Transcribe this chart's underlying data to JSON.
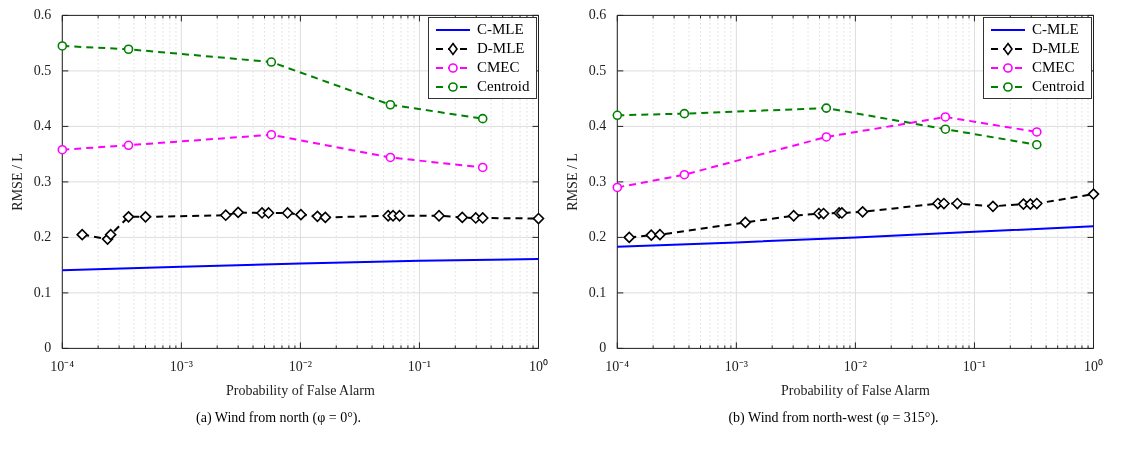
{
  "chart_data": [
    {
      "type": "line",
      "xlabel": "Probability of False Alarm",
      "ylabel": "RMSE / L",
      "log": "x",
      "grid": true,
      "legend": "top right",
      "xlim": [
        0.0001,
        1
      ],
      "ylim": [
        0,
        0.6
      ],
      "xticks": [
        {
          "value": 0.0001,
          "label": "10⁻⁴"
        },
        {
          "value": 0.0002,
          "label": null
        },
        {
          "value": 0.0003,
          "label": null
        },
        {
          "value": 0.0004,
          "label": null
        },
        {
          "value": 0.0005,
          "label": null
        },
        {
          "value": 0.0006,
          "label": null
        },
        {
          "value": 0.0007,
          "label": null
        },
        {
          "value": 0.0008,
          "label": null
        },
        {
          "value": 0.0009,
          "label": null
        },
        {
          "value": 0.001,
          "label": "10⁻³"
        },
        {
          "value": 0.002,
          "label": null
        },
        {
          "value": 0.003,
          "label": null
        },
        {
          "value": 0.004,
          "label": null
        },
        {
          "value": 0.005,
          "label": null
        },
        {
          "value": 0.006,
          "label": null
        },
        {
          "value": 0.007,
          "label": null
        },
        {
          "value": 0.008,
          "label": null
        },
        {
          "value": 0.009,
          "label": null
        },
        {
          "value": 0.01,
          "label": "10⁻²"
        },
        {
          "value": 0.02,
          "label": null
        },
        {
          "value": 0.03,
          "label": null
        },
        {
          "value": 0.04,
          "label": null
        },
        {
          "value": 0.05,
          "label": null
        },
        {
          "value": 0.06,
          "label": null
        },
        {
          "value": 0.07,
          "label": null
        },
        {
          "value": 0.08,
          "label": null
        },
        {
          "value": 0.09,
          "label": null
        },
        {
          "value": 0.1,
          "label": "10⁻¹"
        },
        {
          "value": 0.2,
          "label": null
        },
        {
          "value": 0.3,
          "label": null
        },
        {
          "value": 0.4,
          "label": null
        },
        {
          "value": 0.5,
          "label": null
        },
        {
          "value": 0.6,
          "label": null
        },
        {
          "value": 0.7,
          "label": null
        },
        {
          "value": 0.8,
          "label": null
        },
        {
          "value": 0.9,
          "label": null
        },
        {
          "value": 1,
          "label": "10⁰"
        }
      ],
      "yticks": [
        0,
        0.1,
        0.2,
        0.3,
        0.4,
        0.5,
        0.6
      ],
      "annotations": [
        "(a) Wind from north (φ = 0°)."
      ],
      "series": [
        {
          "name": "C-MLE",
          "color": "#0000ff",
          "marker": "none",
          "line_style": "solid",
          "x": [
            0.0001,
            0.001,
            0.01,
            0.1,
            1
          ],
          "values": [
            0.141,
            0.147,
            0.153,
            0.158,
            0.161
          ]
        },
        {
          "name": "D-MLE",
          "color": "#000000",
          "marker": "diamond",
          "line_style": "dashed",
          "x": [
            0.000147,
            0.00024,
            0.000255,
            0.00036,
            0.0005,
            0.00236,
            0.003,
            0.00476,
            0.0054,
            0.0078,
            0.0101,
            0.0139,
            0.0162,
            0.0546,
            0.06,
            0.068,
            0.146,
            0.229,
            0.297,
            0.34,
            1
          ],
          "values": [
            0.205,
            0.197,
            0.205,
            0.237,
            0.237,
            0.24,
            0.245,
            0.244,
            0.244,
            0.244,
            0.241,
            0.238,
            0.236,
            0.239,
            0.239,
            0.239,
            0.239,
            0.236,
            0.235,
            0.235,
            0.234
          ]
        },
        {
          "name": "CMEC",
          "color": "#ff00ff",
          "marker": "circle",
          "line_style": "dashed",
          "x": [
            0.0001,
            0.00036,
            0.0057,
            0.057,
            0.34
          ],
          "values": [
            0.358,
            0.366,
            0.385,
            0.344,
            0.326
          ]
        },
        {
          "name": "Centroid",
          "color": "#008000",
          "marker": "circle",
          "line_style": "dashed",
          "x": [
            0.0001,
            0.00036,
            0.0057,
            0.057,
            0.34
          ],
          "values": [
            0.545,
            0.539,
            0.516,
            0.439,
            0.414
          ]
        }
      ]
    },
    {
      "type": "line",
      "xlabel": "Probability of False Alarm",
      "ylabel": "RMSE / L",
      "log": "x",
      "grid": true,
      "legend": "top right",
      "xlim": [
        0.0001,
        1
      ],
      "ylim": [
        0,
        0.6
      ],
      "xticks": [
        {
          "value": 0.0001,
          "label": "10⁻⁴"
        },
        {
          "value": 0.0002,
          "label": null
        },
        {
          "value": 0.0003,
          "label": null
        },
        {
          "value": 0.0004,
          "label": null
        },
        {
          "value": 0.0005,
          "label": null
        },
        {
          "value": 0.0006,
          "label": null
        },
        {
          "value": 0.0007,
          "label": null
        },
        {
          "value": 0.0008,
          "label": null
        },
        {
          "value": 0.0009,
          "label": null
        },
        {
          "value": 0.001,
          "label": "10⁻³"
        },
        {
          "value": 0.002,
          "label": null
        },
        {
          "value": 0.003,
          "label": null
        },
        {
          "value": 0.004,
          "label": null
        },
        {
          "value": 0.005,
          "label": null
        },
        {
          "value": 0.006,
          "label": null
        },
        {
          "value": 0.007,
          "label": null
        },
        {
          "value": 0.008,
          "label": null
        },
        {
          "value": 0.009,
          "label": null
        },
        {
          "value": 0.01,
          "label": "10⁻²"
        },
        {
          "value": 0.02,
          "label": null
        },
        {
          "value": 0.03,
          "label": null
        },
        {
          "value": 0.04,
          "label": null
        },
        {
          "value": 0.05,
          "label": null
        },
        {
          "value": 0.06,
          "label": null
        },
        {
          "value": 0.07,
          "label": null
        },
        {
          "value": 0.08,
          "label": null
        },
        {
          "value": 0.09,
          "label": null
        },
        {
          "value": 0.1,
          "label": "10⁻¹"
        },
        {
          "value": 0.2,
          "label": null
        },
        {
          "value": 0.3,
          "label": null
        },
        {
          "value": 0.4,
          "label": null
        },
        {
          "value": 0.5,
          "label": null
        },
        {
          "value": 0.6,
          "label": null
        },
        {
          "value": 0.7,
          "label": null
        },
        {
          "value": 0.8,
          "label": null
        },
        {
          "value": 0.9,
          "label": null
        },
        {
          "value": 1,
          "label": "10⁰"
        }
      ],
      "yticks": [
        0,
        0.1,
        0.2,
        0.3,
        0.4,
        0.5,
        0.6
      ],
      "annotations": [
        "(b) Wind from north-west (φ = 315°)."
      ],
      "series": [
        {
          "name": "C-MLE",
          "color": "#0000ff",
          "marker": "none",
          "line_style": "solid",
          "x": [
            0.0001,
            0.001,
            0.01,
            0.1,
            1
          ],
          "values": [
            0.183,
            0.191,
            0.2,
            0.21,
            0.22
          ]
        },
        {
          "name": "D-MLE",
          "color": "#000000",
          "marker": "diamond",
          "line_style": "dashed",
          "x": [
            0.000126,
            0.000193,
            0.000228,
            0.00119,
            0.00303,
            0.00493,
            0.0054,
            0.0073,
            0.0077,
            0.0115,
            0.0493,
            0.0554,
            0.0718,
            0.143,
            0.258,
            0.295,
            0.334,
            1
          ],
          "values": [
            0.2,
            0.204,
            0.205,
            0.227,
            0.239,
            0.243,
            0.243,
            0.244,
            0.244,
            0.246,
            0.261,
            0.261,
            0.261,
            0.256,
            0.26,
            0.26,
            0.261,
            0.278
          ]
        },
        {
          "name": "CMEC",
          "color": "#ff00ff",
          "marker": "circle",
          "line_style": "dashed",
          "x": [
            0.0001,
            0.000366,
            0.0057,
            0.057,
            0.334
          ],
          "values": [
            0.29,
            0.313,
            0.381,
            0.417,
            0.39
          ]
        },
        {
          "name": "Centroid",
          "color": "#008000",
          "marker": "circle",
          "line_style": "dashed",
          "x": [
            0.0001,
            0.000366,
            0.0057,
            0.057,
            0.334
          ],
          "values": [
            0.42,
            0.423,
            0.433,
            0.395,
            0.367
          ]
        }
      ]
    }
  ]
}
